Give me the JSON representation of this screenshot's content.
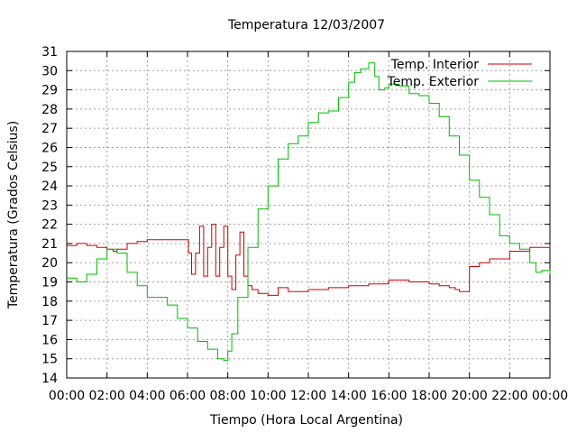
{
  "chart_data": {
    "type": "line",
    "title": "Temperatura 12/03/2007",
    "xlabel": "Tiempo (Hora Local Argentina)",
    "ylabel": "Temperatura (Grados Celsius)",
    "xlim": [
      0,
      24
    ],
    "ylim": [
      14,
      31
    ],
    "x_ticks": [
      "00:00",
      "02:00",
      "04:00",
      "06:00",
      "08:00",
      "10:00",
      "12:00",
      "14:00",
      "16:00",
      "18:00",
      "20:00",
      "22:00",
      "00:00"
    ],
    "y_ticks": [
      "14",
      "15",
      "16",
      "17",
      "18",
      "19",
      "20",
      "21",
      "22",
      "23",
      "24",
      "25",
      "26",
      "27",
      "28",
      "29",
      "30",
      "31"
    ],
    "grid": true,
    "legend_position": "top-right",
    "series": [
      {
        "name": "Temp. Interior",
        "color": "#cc0000",
        "x": [
          0,
          0.5,
          1,
          1.5,
          2,
          2.3,
          2.5,
          3,
          3.5,
          4,
          4.5,
          5,
          5.5,
          5.9,
          6.05,
          6.2,
          6.4,
          6.6,
          6.8,
          7.0,
          7.2,
          7.4,
          7.6,
          7.8,
          8.0,
          8.2,
          8.4,
          8.6,
          8.8,
          9.0,
          9.2,
          9.5,
          10,
          10.5,
          11,
          11.5,
          12,
          13,
          14,
          15,
          16,
          17,
          18,
          18.5,
          19,
          19.3,
          19.5,
          20,
          20.5,
          21,
          22,
          23,
          24
        ],
        "values": [
          20.9,
          21.0,
          20.9,
          20.8,
          20.7,
          20.6,
          20.7,
          21.0,
          21.1,
          21.2,
          21.2,
          21.2,
          21.2,
          21.2,
          20.5,
          19.4,
          20.5,
          21.9,
          19.3,
          20.8,
          22.0,
          19.3,
          20.8,
          21.9,
          19.3,
          18.6,
          20.4,
          21.6,
          19.3,
          18.8,
          18.6,
          18.4,
          18.3,
          18.7,
          18.5,
          18.5,
          18.6,
          18.7,
          18.8,
          18.9,
          19.1,
          19.0,
          18.9,
          18.8,
          18.7,
          18.6,
          18.5,
          19.8,
          20.0,
          20.2,
          20.6,
          20.8,
          20.9
        ]
      },
      {
        "name": "Temp. Exterior",
        "color": "#00bb00",
        "x": [
          0,
          0.5,
          1,
          1.5,
          2,
          2.5,
          3,
          3.5,
          4,
          4.5,
          5,
          5.5,
          6,
          6.5,
          7,
          7.5,
          7.8,
          8.0,
          8.2,
          8.5,
          9,
          9.5,
          10,
          10.5,
          11,
          11.5,
          12,
          12.5,
          13,
          13.5,
          14,
          14.3,
          14.6,
          15,
          15.3,
          15.5,
          15.8,
          16,
          16.5,
          17,
          17.5,
          18,
          18.5,
          19,
          19.5,
          20,
          20.5,
          21,
          21.5,
          22,
          22.5,
          23,
          23.3,
          23.6,
          24
        ],
        "values": [
          19.2,
          19.0,
          19.4,
          20.2,
          20.7,
          20.5,
          19.5,
          18.8,
          18.2,
          18.2,
          17.8,
          17.1,
          16.6,
          15.9,
          15.5,
          15.0,
          14.9,
          15.4,
          16.3,
          18.2,
          20.8,
          22.8,
          24.0,
          25.4,
          26.2,
          26.6,
          27.3,
          27.8,
          27.9,
          28.6,
          29.4,
          29.9,
          30.1,
          30.4,
          29.7,
          29.0,
          29.1,
          29.3,
          29.2,
          28.8,
          28.7,
          28.3,
          27.6,
          26.6,
          25.6,
          24.3,
          23.4,
          22.5,
          21.4,
          21.0,
          20.7,
          20.0,
          19.5,
          19.6,
          19.4
        ]
      }
    ]
  }
}
